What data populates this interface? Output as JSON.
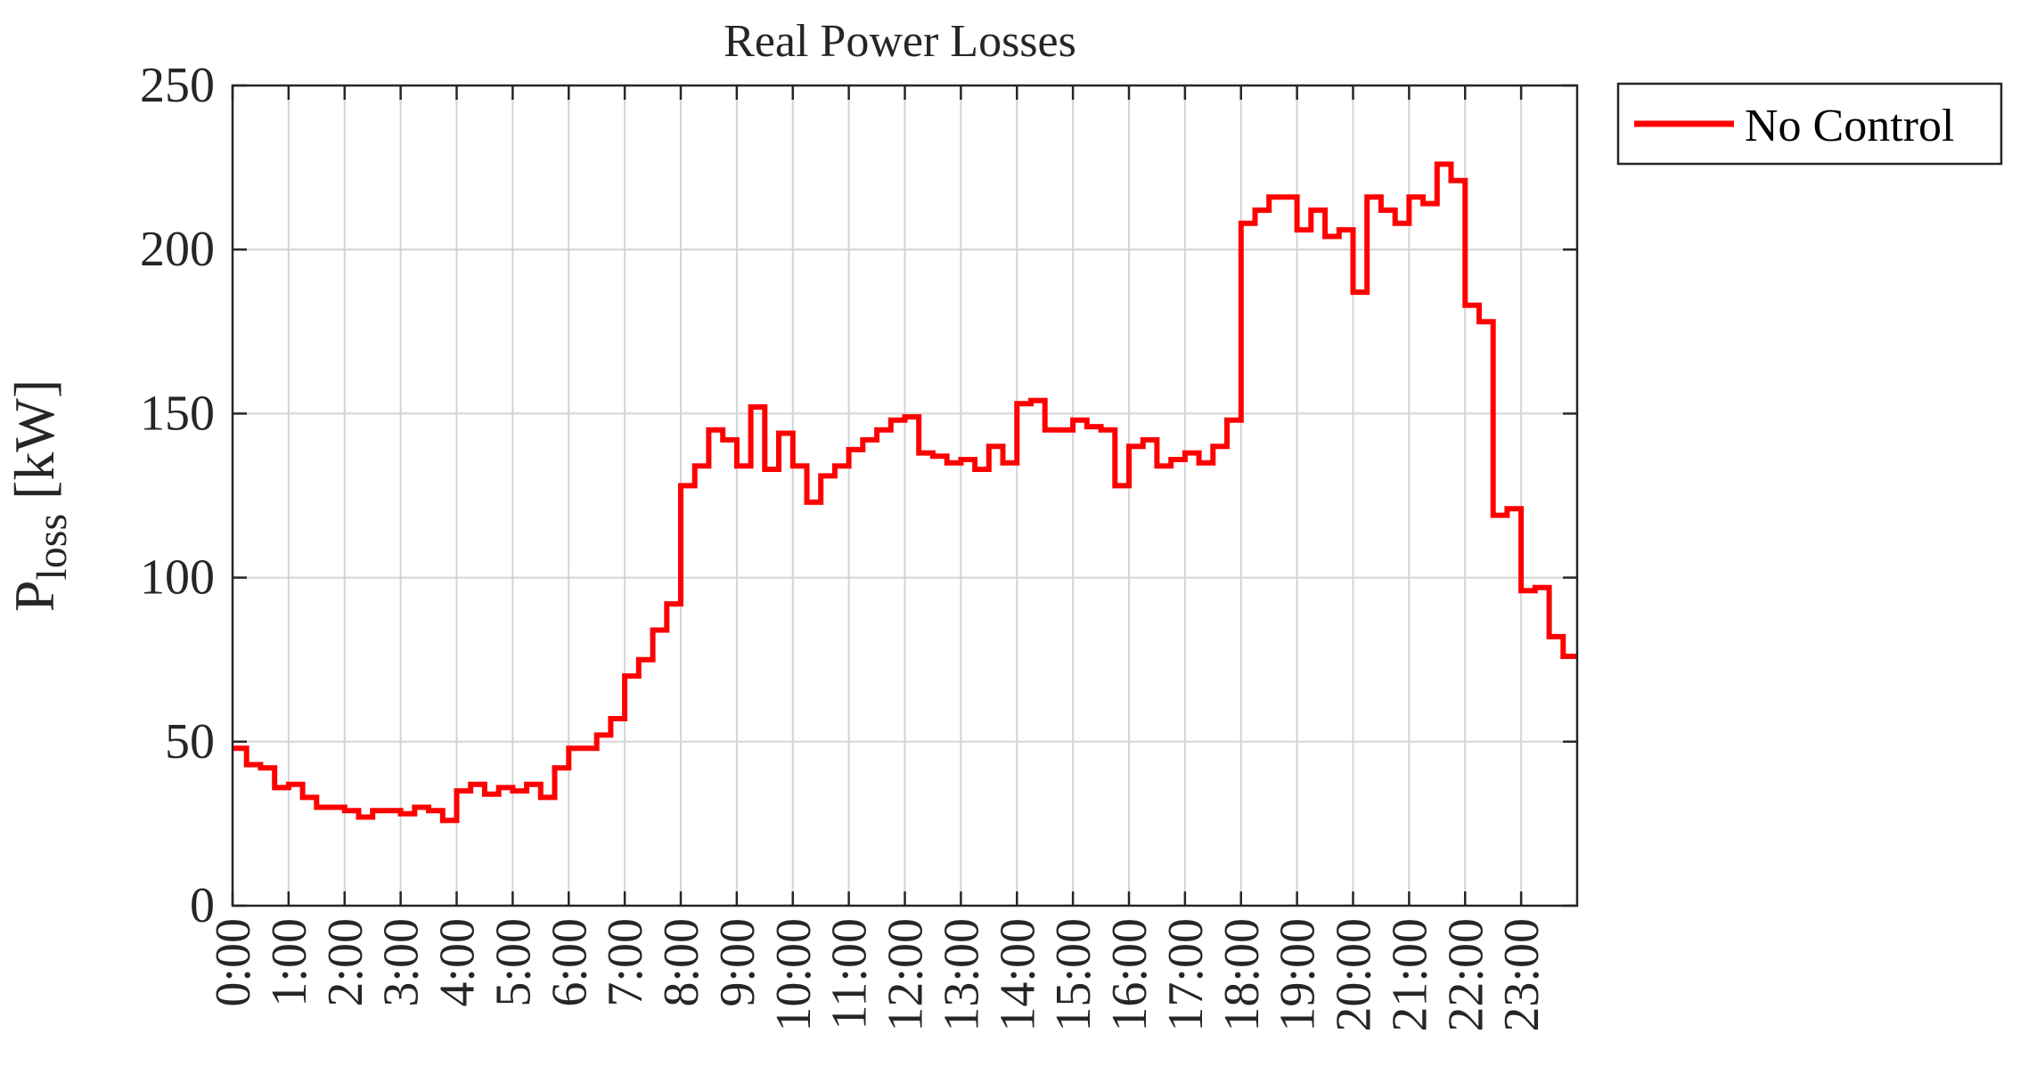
{
  "chart_data": {
    "type": "line",
    "step": true,
    "title": "Real Power Losses",
    "ylabel": "P",
    "ylabel_subscript": "loss",
    "ylabel_unit": "[kW]",
    "xlabel": "",
    "ylim": [
      0,
      250
    ],
    "xlim_hours": [
      0,
      24
    ],
    "y_ticks": [
      0,
      50,
      100,
      150,
      200,
      250
    ],
    "x_tick_labels": [
      "0:00",
      "1:00",
      "2:00",
      "3:00",
      "4:00",
      "5:00",
      "6:00",
      "7:00",
      "8:00",
      "9:00",
      "10:00",
      "11:00",
      "12:00",
      "13:00",
      "14:00",
      "15:00",
      "16:00",
      "17:00",
      "18:00",
      "19:00",
      "20:00",
      "21:00",
      "22:00",
      "23:00"
    ],
    "grid": true,
    "legend_position": "outside-top-right",
    "interval_minutes": 15,
    "series": [
      {
        "name": "No Control",
        "color": "#ff0000",
        "values": [
          48,
          43,
          42,
          36,
          37,
          33,
          30,
          30,
          29,
          27,
          29,
          29,
          28,
          30,
          29,
          26,
          35,
          37,
          34,
          36,
          35,
          37,
          33,
          42,
          48,
          48,
          52,
          57,
          70,
          75,
          84,
          92,
          128,
          134,
          145,
          142,
          134,
          152,
          133,
          144,
          134,
          123,
          131,
          134,
          139,
          142,
          145,
          148,
          149,
          138,
          137,
          135,
          136,
          133,
          140,
          135,
          153,
          154,
          145,
          145,
          148,
          146,
          145,
          128,
          140,
          142,
          134,
          136,
          138,
          135,
          140,
          148,
          208,
          212,
          216,
          216,
          206,
          212,
          204,
          206,
          187,
          216,
          212,
          208,
          216,
          214,
          226,
          221,
          183,
          178,
          119,
          121,
          96,
          97,
          82,
          76
        ]
      }
    ]
  }
}
